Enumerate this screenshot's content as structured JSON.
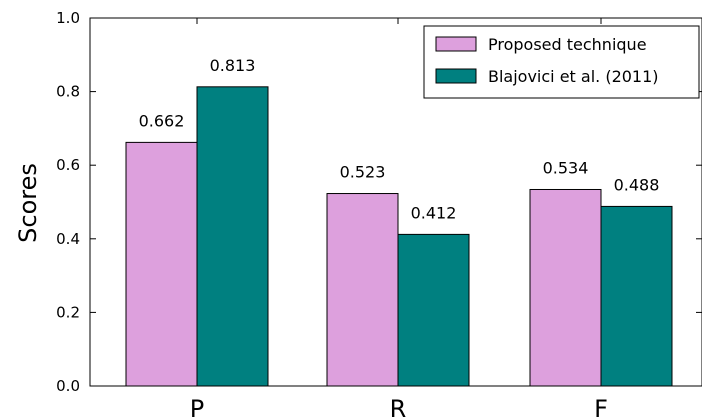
{
  "chart_data": {
    "type": "bar",
    "title": "",
    "xlabel": "",
    "ylabel": "Scores",
    "ylim": [
      0,
      1.0
    ],
    "yticks": [
      "0.0",
      "0.2",
      "0.4",
      "0.6",
      "0.8",
      "1.0"
    ],
    "categories": [
      "P",
      "R",
      "F"
    ],
    "series": [
      {
        "name": "Proposed technique",
        "color": "#dda0dd",
        "values": [
          0.662,
          0.523,
          0.534
        ],
        "labels": [
          "0.662",
          "0.523",
          "0.534"
        ]
      },
      {
        "name": "Blajovici et al. (2011)",
        "color": "#008080",
        "values": [
          0.813,
          0.412,
          0.488
        ],
        "labels": [
          "0.813",
          "0.412",
          "0.488"
        ]
      }
    ],
    "legend_position": "top-right",
    "grid": false
  }
}
